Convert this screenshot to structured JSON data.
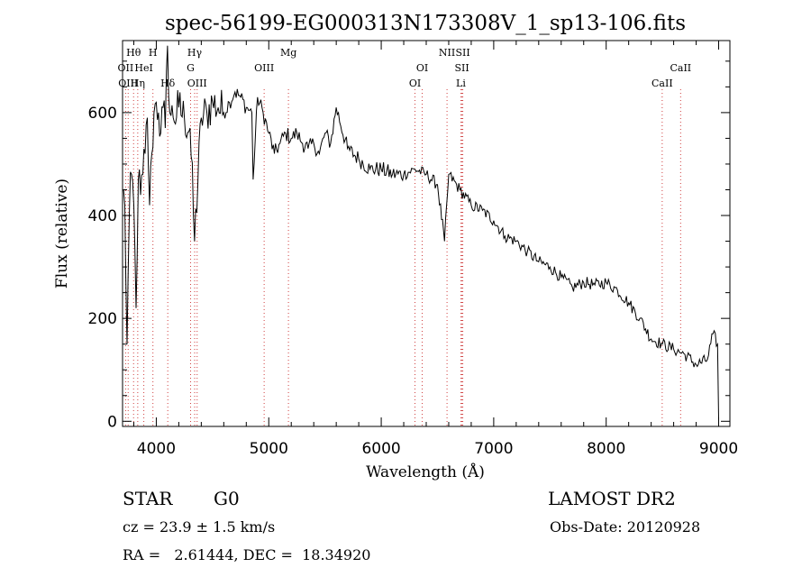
{
  "chart_data": {
    "type": "line",
    "title": "spec-56199-EG000313N173308V_1_sp13-106.fits",
    "xlabel": "Wavelength (Å)",
    "ylabel": "Flux (relative)",
    "xlim": [
      3700,
      9100
    ],
    "ylim": [
      -10,
      740
    ],
    "xticks": [
      4000,
      5000,
      6000,
      7000,
      8000,
      9000
    ],
    "yticks": [
      0,
      200,
      400,
      600
    ],
    "grid": false,
    "series": [
      {
        "x": [
          3700,
          3720,
          3740,
          3760,
          3780,
          3800,
          3820,
          3840,
          3860,
          3880,
          3900,
          3920,
          3940,
          3960,
          3980,
          4000,
          4020,
          4040,
          4060,
          4080,
          4100,
          4120,
          4150,
          4200,
          4250,
          4300,
          4340,
          4400,
          4450,
          4500,
          4550,
          4600,
          4650,
          4700,
          4750,
          4800,
          4850,
          4861,
          4900,
          4950,
          5000,
          5050,
          5100,
          5150,
          5200,
          5250,
          5300,
          5350,
          5400,
          5450,
          5500,
          5550,
          5600,
          5700,
          5800,
          5900,
          6000,
          6100,
          6200,
          6300,
          6400,
          6500,
          6563,
          6600,
          6700,
          6800,
          6900,
          7000,
          7100,
          7200,
          7300,
          7400,
          7500,
          7600,
          7700,
          7800,
          7900,
          8000,
          8100,
          8200,
          8300,
          8400,
          8500,
          8600,
          8700,
          8800,
          8900,
          8950,
          8990,
          9000
        ],
        "y": [
          450,
          420,
          150,
          400,
          480,
          420,
          220,
          470,
          440,
          480,
          520,
          590,
          420,
          520,
          600,
          620,
          600,
          560,
          610,
          570,
          730,
          600,
          590,
          610,
          590,
          570,
          350,
          590,
          600,
          620,
          610,
          600,
          620,
          640,
          630,
          610,
          600,
          470,
          630,
          600,
          560,
          520,
          540,
          560,
          550,
          560,
          540,
          530,
          540,
          520,
          560,
          540,
          610,
          530,
          510,
          490,
          490,
          480,
          480,
          490,
          480,
          460,
          350,
          480,
          450,
          420,
          410,
          390,
          360,
          350,
          330,
          310,
          300,
          280,
          260,
          270,
          265,
          270,
          255,
          230,
          200,
          160,
          150,
          140,
          130,
          110,
          120,
          170,
          150,
          5
        ]
      }
    ],
    "line_markers": [
      {
        "label": "Hθ",
        "x": 3798,
        "row": 1
      },
      {
        "label": "H",
        "x": 3970,
        "row": 1
      },
      {
        "label": "Hγ",
        "x": 4341,
        "row": 1
      },
      {
        "label": "Mg",
        "x": 5175,
        "row": 1
      },
      {
        "label": "NII",
        "x": 6585,
        "row": 1
      },
      {
        "label": "SII",
        "x": 6725,
        "row": 1
      },
      {
        "label": "OII",
        "x": 3727,
        "row": 2
      },
      {
        "label": "HeI",
        "x": 3889,
        "row": 2
      },
      {
        "label": "G",
        "x": 4305,
        "row": 2
      },
      {
        "label": "OIII",
        "x": 4959,
        "row": 2
      },
      {
        "label": "OI",
        "x": 6364,
        "row": 2
      },
      {
        "label": "SII",
        "x": 6717,
        "row": 2
      },
      {
        "label": "CaII",
        "x": 8662,
        "row": 2
      },
      {
        "label": "OIII",
        "x": 3750,
        "row": 3
      },
      {
        "label": "Hη",
        "x": 3835,
        "row": 3
      },
      {
        "label": "Hδ",
        "x": 4102,
        "row": 3
      },
      {
        "label": "OIII",
        "x": 4363,
        "row": 3
      },
      {
        "label": "OI",
        "x": 6300,
        "row": 3
      },
      {
        "label": "Li",
        "x": 6708,
        "row": 3
      },
      {
        "label": "CaII",
        "x": 8498,
        "row": 3
      }
    ]
  },
  "info": {
    "class": "STAR",
    "subclass": "G0",
    "survey": "LAMOST DR2",
    "cz": "cz = 23.9 ± 1.5 km/s",
    "obs_date": "Obs-Date: 20120928",
    "coords": "RA =   2.61444, DEC =  18.34920"
  }
}
